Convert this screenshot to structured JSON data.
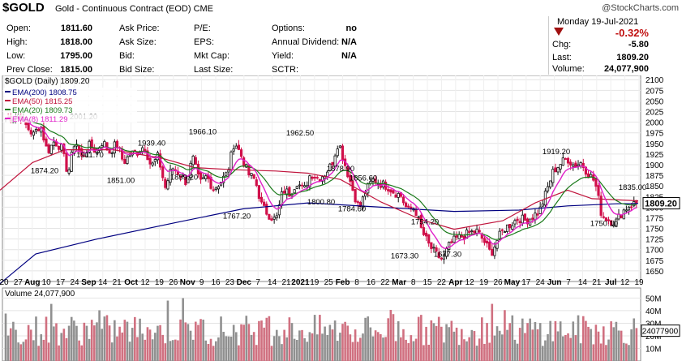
{
  "header": {
    "symbol": "$GOLD",
    "description": "Gold - Continuous Contract (EOD)",
    "exchange": "CME",
    "watermark": "@StockCharts.com",
    "date": "Monday  19-Jul-2021",
    "pct_change": "-0.32%",
    "chg_label": "Chg:",
    "chg_value": "-5.80",
    "last_label": "Last:",
    "last_value": "1809.20",
    "volume_label": "Volume:",
    "volume_value": "24,077,900",
    "quotes_left": [
      {
        "label": "Open:",
        "value": "1811.60"
      },
      {
        "label": "High:",
        "value": "1818.00"
      },
      {
        "label": "Low:",
        "value": "1795.00"
      },
      {
        "label": "Prev Close:",
        "value": "1815.00"
      }
    ],
    "quotes_mid": [
      {
        "label": "Ask Price:",
        "value": ""
      },
      {
        "label": "Ask Size:",
        "value": ""
      },
      {
        "label": "Bid:",
        "value": ""
      },
      {
        "label": "Bid Size:",
        "value": ""
      }
    ],
    "quotes_mid2": [
      {
        "label": "P/E:",
        "value": ""
      },
      {
        "label": "EPS:",
        "value": ""
      },
      {
        "label": "Mkt Cap:",
        "value": ""
      },
      {
        "label": "Last Size:",
        "value": ""
      }
    ],
    "quotes_right": [
      {
        "label": "Options:",
        "value": "no"
      },
      {
        "label": "Annual Dividend:",
        "value": "N/A"
      },
      {
        "label": "Yield:",
        "value": "N/A"
      },
      {
        "label": "SCTR:",
        "value": ""
      }
    ]
  },
  "chart_data": [
    {
      "type": "candlestick",
      "title": "$GOLD (Daily) 1809.20",
      "ylim": [
        1625,
        2110
      ],
      "y_ticks": [
        1650,
        1675,
        1700,
        1725,
        1750,
        1775,
        1800,
        1825,
        1850,
        1875,
        1900,
        1925,
        1950,
        1975,
        2000,
        2025,
        2050,
        2075,
        2100
      ],
      "last_price_label": "1809.20",
      "x_tick_labels": [
        {
          "label": "20",
          "bold": false
        },
        {
          "label": "27",
          "bold": false
        },
        {
          "label": "Aug",
          "bold": true
        },
        {
          "label": "10",
          "bold": false
        },
        {
          "label": "17",
          "bold": false
        },
        {
          "label": "24",
          "bold": false
        },
        {
          "label": "Sep",
          "bold": true
        },
        {
          "label": "14",
          "bold": false
        },
        {
          "label": "21",
          "bold": false
        },
        {
          "label": "Oct",
          "bold": true
        },
        {
          "label": "12",
          "bold": false
        },
        {
          "label": "19",
          "bold": false
        },
        {
          "label": "26",
          "bold": false
        },
        {
          "label": "Nov",
          "bold": true
        },
        {
          "label": "9",
          "bold": false
        },
        {
          "label": "16",
          "bold": false
        },
        {
          "label": "23",
          "bold": false
        },
        {
          "label": "Dec",
          "bold": true
        },
        {
          "label": "7",
          "bold": false
        },
        {
          "label": "14",
          "bold": false
        },
        {
          "label": "21",
          "bold": false
        },
        {
          "label": "2021",
          "bold": true
        },
        {
          "label": "19",
          "bold": false
        },
        {
          "label": "25",
          "bold": false
        },
        {
          "label": "Feb",
          "bold": true
        },
        {
          "label": "8",
          "bold": false
        },
        {
          "label": "16",
          "bold": false
        },
        {
          "label": "22",
          "bold": false
        },
        {
          "label": "Mar",
          "bold": true
        },
        {
          "label": "8",
          "bold": false
        },
        {
          "label": "15",
          "bold": false
        },
        {
          "label": "22",
          "bold": false
        },
        {
          "label": "Apr",
          "bold": true
        },
        {
          "label": "12",
          "bold": false
        },
        {
          "label": "19",
          "bold": false
        },
        {
          "label": "26",
          "bold": false
        },
        {
          "label": "May",
          "bold": true
        },
        {
          "label": "17",
          "bold": false
        },
        {
          "label": "24",
          "bold": false
        },
        {
          "label": "Jun",
          "bold": true
        },
        {
          "label": "7",
          "bold": false
        },
        {
          "label": "14",
          "bold": false
        },
        {
          "label": "21",
          "bold": false
        },
        {
          "label": "Jul",
          "bold": true
        },
        {
          "label": "12",
          "bold": false
        },
        {
          "label": "19",
          "bold": false
        }
      ],
      "legend": [
        {
          "label": "EMA(200) 1808.75",
          "color": "#000080"
        },
        {
          "label": "EMA(50) 1815.25",
          "color": "#c0143c"
        },
        {
          "label": "EMA(20) 1809.73",
          "color": "#1a7a1a"
        },
        {
          "label": "EMA(8) 1811.29",
          "color": "#e020c8"
        }
      ],
      "annotations": [
        {
          "text": "2001.20",
          "price": 2001.2
        },
        {
          "text": "1874.20",
          "price": 1874.2
        },
        {
          "text": "1911.70",
          "price": 1911.7
        },
        {
          "text": "1966.10",
          "price": 1966.1
        },
        {
          "text": "1939.40",
          "price": 1939.4
        },
        {
          "text": "1851.00",
          "price": 1851.0
        },
        {
          "text": "1859.20",
          "price": 1859.2
        },
        {
          "text": "1767.20",
          "price": 1767.2
        },
        {
          "text": "1962.50",
          "price": 1962.5
        },
        {
          "text": "1878.90",
          "price": 1878.9
        },
        {
          "text": "1856.60",
          "price": 1856.6
        },
        {
          "text": "1800.80",
          "price": 1800.8
        },
        {
          "text": "1784.60",
          "price": 1784.6
        },
        {
          "text": "1754.20",
          "price": 1754.2
        },
        {
          "text": "1673.30",
          "price": 1673.3
        },
        {
          "text": "1677.30",
          "price": 1677.3
        },
        {
          "text": "1919.20",
          "price": 1919.2
        },
        {
          "text": "1750.10",
          "price": 1750.1
        },
        {
          "text": "1835.00",
          "price": 1835.0
        }
      ],
      "anchors": [
        2008,
        2012,
        2018,
        1990,
        1970,
        1995,
        1930,
        1955,
        1941,
        1878,
        1960,
        1915,
        1945,
        1932,
        1955,
        1930,
        1950,
        1905,
        1925,
        1930,
        1945,
        1895,
        1920,
        1845,
        1893,
        1880,
        1860,
        1915,
        1855,
        1873,
        1842,
        1860,
        1880,
        1956,
        1920,
        1878,
        1863,
        1800,
        1782,
        1768,
        1840,
        1832,
        1860,
        1838,
        1880,
        1868,
        1878,
        1900,
        1955,
        1898,
        1845,
        1795,
        1840,
        1865,
        1856,
        1850,
        1836,
        1827,
        1790,
        1800,
        1745,
        1712,
        1690,
        1676,
        1710,
        1726,
        1732,
        1740,
        1743,
        1720,
        1690,
        1726,
        1750,
        1762,
        1775,
        1768,
        1778,
        1790,
        1836,
        1885,
        1902,
        1915,
        1898,
        1905,
        1880,
        1860,
        1780,
        1770,
        1765,
        1790,
        1805,
        1810
      ],
      "ema200": [
        [
          0,
          1620
        ],
        [
          44,
          1690
        ],
        [
          120,
          1725
        ],
        [
          220,
          1765
        ],
        [
          300,
          1796
        ],
        [
          380,
          1810
        ],
        [
          470,
          1800
        ],
        [
          560,
          1790
        ],
        [
          640,
          1793
        ],
        [
          700,
          1803
        ],
        [
          760,
          1808
        ],
        [
          787,
          1808.75
        ]
      ],
      "ema50": [
        [
          0,
          1840
        ],
        [
          40,
          1905
        ],
        [
          80,
          1935
        ],
        [
          140,
          1935
        ],
        [
          200,
          1915
        ],
        [
          240,
          1893
        ],
        [
          290,
          1888
        ],
        [
          340,
          1885
        ],
        [
          380,
          1880
        ],
        [
          420,
          1865
        ],
        [
          470,
          1812
        ],
        [
          520,
          1770
        ],
        [
          560,
          1748
        ],
        [
          620,
          1768
        ],
        [
          660,
          1810
        ],
        [
          700,
          1840
        ],
        [
          730,
          1820
        ],
        [
          787,
          1815
        ]
      ]
    },
    {
      "type": "bar",
      "title": "Volume 24,077,900",
      "y_ticks": [
        "50M",
        "40M",
        "30M",
        "20M",
        "10M"
      ],
      "ylim": [
        0,
        58
      ],
      "last_value_label": "24077900"
    }
  ]
}
